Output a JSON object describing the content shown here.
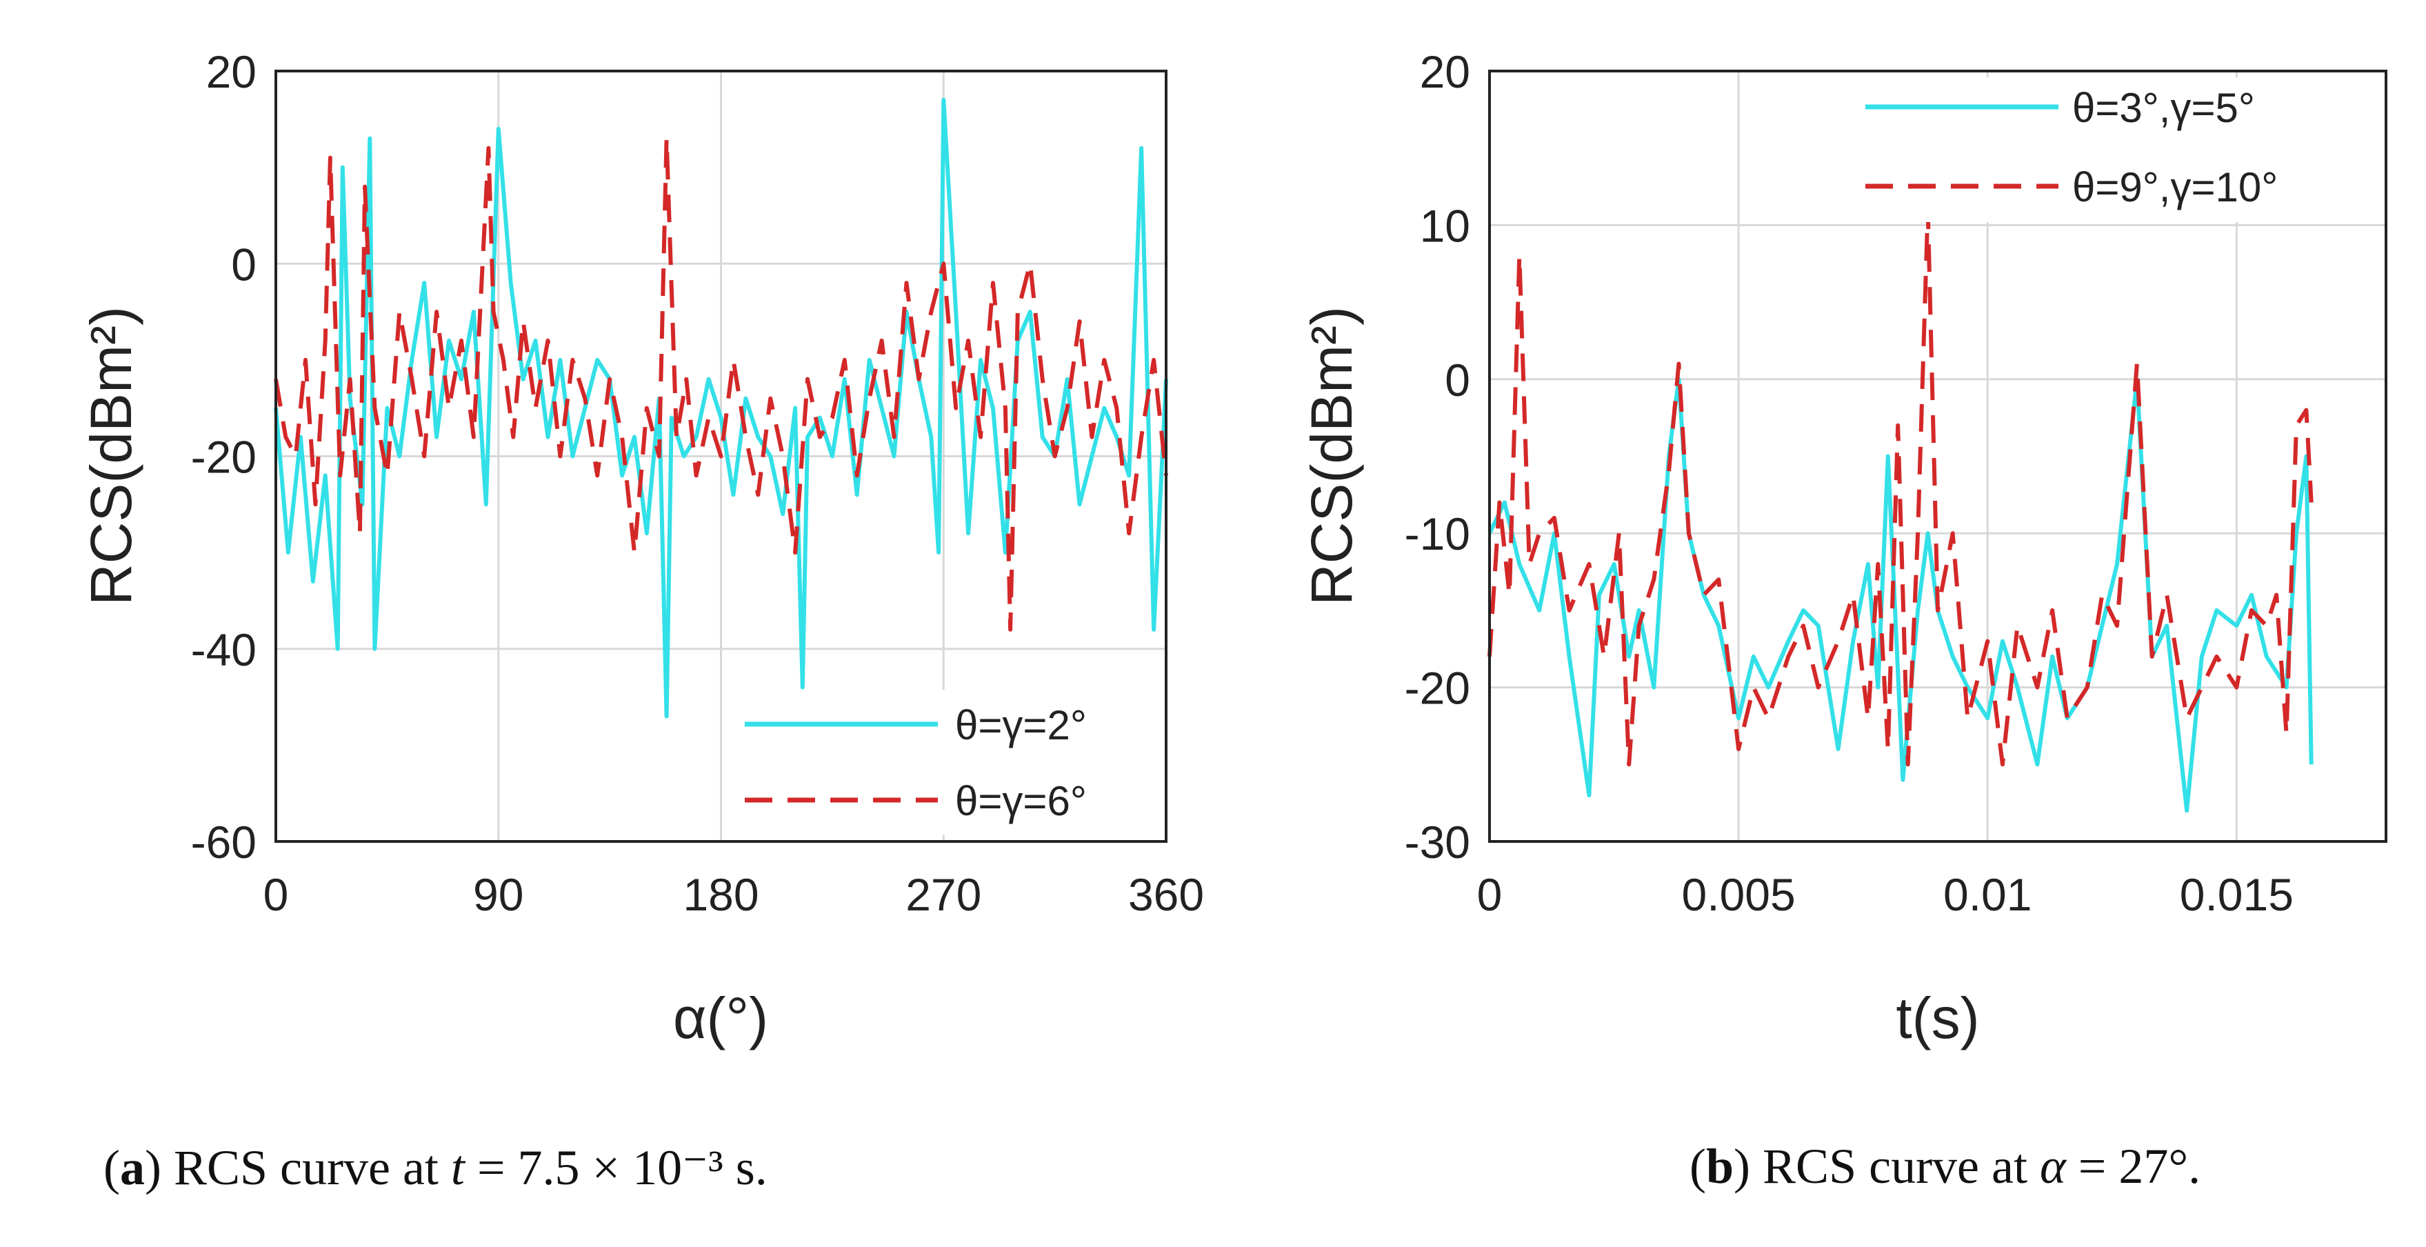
{
  "chart_data": [
    {
      "type": "line",
      "id": "a",
      "xlabel": "α(°)",
      "ylabel": "RCS(dBm²)",
      "xlim": [
        0,
        360
      ],
      "ylim": [
        -60,
        20
      ],
      "xticks": [
        "0",
        "90",
        "180",
        "270",
        "360"
      ],
      "yticks": [
        "20",
        "0",
        "-20",
        "-40",
        "-60"
      ],
      "grid": true,
      "legend_position": "bottom-right",
      "series": [
        {
          "name": "θ=γ=2°",
          "color": "#33e0e8",
          "style": "solid",
          "x": [
            0,
            5,
            10,
            15,
            20,
            25,
            27,
            30,
            35,
            38,
            40,
            45,
            50,
            55,
            60,
            65,
            70,
            75,
            80,
            85,
            90,
            95,
            100,
            105,
            110,
            115,
            120,
            125,
            130,
            135,
            140,
            145,
            150,
            155,
            158,
            160,
            165,
            170,
            175,
            180,
            185,
            190,
            195,
            200,
            205,
            210,
            213,
            215,
            220,
            225,
            230,
            235,
            240,
            245,
            250,
            255,
            260,
            265,
            268,
            270,
            275,
            280,
            285,
            290,
            295,
            300,
            305,
            310,
            315,
            320,
            325,
            330,
            335,
            340,
            345,
            350,
            355,
            360
          ],
          "y": [
            -15,
            -30,
            -18,
            -33,
            -22,
            -40,
            10,
            -14,
            -25,
            13,
            -40,
            -15,
            -20,
            -10,
            -2,
            -18,
            -8,
            -12,
            -5,
            -25,
            14,
            -2,
            -12,
            -8,
            -18,
            -10,
            -20,
            -15,
            -10,
            -12,
            -22,
            -18,
            -28,
            -14,
            -47,
            -16,
            -20,
            -18,
            -12,
            -16,
            -24,
            -14,
            -18,
            -20,
            -26,
            -15,
            -44,
            -18,
            -16,
            -20,
            -12,
            -24,
            -10,
            -15,
            -20,
            -5,
            -12,
            -18,
            -30,
            17,
            -5,
            -28,
            -10,
            -15,
            -30,
            -8,
            -5,
            -18,
            -20,
            -12,
            -25,
            -20,
            -15,
            -18,
            -22,
            12,
            -38,
            -12
          ]
        },
        {
          "name": "θ=γ=6°",
          "color": "#d42828",
          "style": "dashed",
          "x": [
            0,
            4,
            8,
            12,
            16,
            20,
            22,
            26,
            30,
            34,
            36,
            40,
            45,
            50,
            55,
            60,
            65,
            70,
            75,
            80,
            86,
            88,
            92,
            96,
            100,
            105,
            110,
            115,
            120,
            125,
            130,
            135,
            140,
            145,
            150,
            155,
            158,
            162,
            166,
            170,
            175,
            180,
            185,
            190,
            195,
            200,
            205,
            210,
            215,
            220,
            225,
            230,
            235,
            240,
            245,
            250,
            255,
            260,
            265,
            270,
            275,
            280,
            285,
            290,
            295,
            297,
            300,
            305,
            310,
            315,
            320,
            325,
            330,
            335,
            340,
            345,
            350,
            355,
            360
          ],
          "y": [
            -12,
            -18,
            -20,
            -10,
            -25,
            -8,
            11,
            -22,
            -12,
            -28,
            8,
            -15,
            -22,
            -5,
            -12,
            -20,
            -5,
            -15,
            -8,
            -18,
            12,
            -5,
            -10,
            -18,
            -6,
            -15,
            -8,
            -20,
            -10,
            -14,
            -22,
            -12,
            -18,
            -30,
            -15,
            -20,
            13,
            -18,
            -12,
            -22,
            -16,
            -20,
            -10,
            -18,
            -24,
            -14,
            -20,
            -30,
            -12,
            -18,
            -16,
            -10,
            -22,
            -14,
            -8,
            -18,
            -2,
            -12,
            -5,
            0,
            -15,
            -8,
            -18,
            -2,
            -15,
            -38,
            -5,
            0,
            -12,
            -20,
            -15,
            -6,
            -18,
            -10,
            -15,
            -28,
            -18,
            -10,
            -22
          ]
        }
      ]
    },
    {
      "type": "line",
      "id": "b",
      "xlabel": "t(s)",
      "ylabel": "RCS(dBm²)",
      "xlim": [
        0,
        0.018
      ],
      "ylim": [
        -30,
        20
      ],
      "xticks": [
        "0",
        "0.005",
        "0.01",
        "0.015"
      ],
      "xtick_values": [
        0,
        0.005,
        0.01,
        0.015
      ],
      "yticks": [
        "20",
        "10",
        "0",
        "-10",
        "-20",
        "-30"
      ],
      "grid": true,
      "legend_position": "top-right",
      "series": [
        {
          "name": "θ=3°,γ=5°",
          "color": "#33e0e8",
          "style": "solid",
          "x": [
            0,
            0.0003,
            0.0006,
            0.001,
            0.0013,
            0.0016,
            0.002,
            0.0022,
            0.0025,
            0.0028,
            0.003,
            0.0033,
            0.0036,
            0.0038,
            0.004,
            0.0043,
            0.0046,
            0.005,
            0.0053,
            0.0056,
            0.006,
            0.0063,
            0.0066,
            0.007,
            0.0073,
            0.0076,
            0.0078,
            0.008,
            0.0083,
            0.0086,
            0.0088,
            0.009,
            0.0093,
            0.0096,
            0.01,
            0.0103,
            0.0106,
            0.011,
            0.0113,
            0.0116,
            0.012,
            0.0123,
            0.0126,
            0.013,
            0.0133,
            0.0136,
            0.014,
            0.0143,
            0.0146,
            0.015,
            0.0153,
            0.0156,
            0.016,
            0.0162,
            0.0164,
            0.0165
          ],
          "y": [
            -10,
            -8,
            -12,
            -15,
            -10,
            -18,
            -27,
            -14,
            -12,
            -18,
            -15,
            -20,
            -5,
            0,
            -10,
            -14,
            -16,
            -22,
            -18,
            -20,
            -17,
            -15,
            -16,
            -24,
            -17,
            -12,
            -20,
            -5,
            -26,
            -15,
            -10,
            -15,
            -18,
            -20,
            -22,
            -17,
            -20,
            -25,
            -18,
            -22,
            -20,
            -16,
            -12,
            0,
            -18,
            -16,
            -28,
            -18,
            -15,
            -16,
            -14,
            -18,
            -20,
            -10,
            -5,
            -25
          ]
        },
        {
          "name": "θ=9°,γ=10°",
          "color": "#d42828",
          "style": "dashed",
          "x": [
            0,
            0.0002,
            0.0004,
            0.0006,
            0.0008,
            0.001,
            0.0013,
            0.0016,
            0.002,
            0.0023,
            0.0026,
            0.0028,
            0.003,
            0.0033,
            0.0036,
            0.0038,
            0.004,
            0.0043,
            0.0046,
            0.005,
            0.0053,
            0.0056,
            0.006,
            0.0063,
            0.0066,
            0.007,
            0.0073,
            0.0076,
            0.0078,
            0.008,
            0.0082,
            0.0084,
            0.0086,
            0.0088,
            0.009,
            0.0093,
            0.0096,
            0.01,
            0.0103,
            0.0106,
            0.011,
            0.0113,
            0.0116,
            0.012,
            0.0123,
            0.0126,
            0.013,
            0.0133,
            0.0136,
            0.014,
            0.0143,
            0.0146,
            0.015,
            0.0153,
            0.0156,
            0.0158,
            0.016,
            0.0162,
            0.0164,
            0.0165
          ],
          "y": [
            -18,
            -8,
            -14,
            8,
            -12,
            -10,
            -9,
            -15,
            -12,
            -18,
            -10,
            -25,
            -16,
            -13,
            -6,
            1,
            -10,
            -14,
            -13,
            -24,
            -20,
            -22,
            -18,
            -16,
            -20,
            -17,
            -14,
            -22,
            -12,
            -24,
            -3,
            -25,
            -10,
            11,
            -15,
            -10,
            -22,
            -17,
            -25,
            -16,
            -20,
            -15,
            -22,
            -20,
            -14,
            -16,
            1,
            -18,
            -14,
            -22,
            -20,
            -18,
            -20,
            -15,
            -16,
            -14,
            -23,
            -3,
            -2,
            -8
          ]
        }
      ]
    }
  ],
  "captions": {
    "a": {
      "label": "a",
      "text_before": " RCS curve at ",
      "var": "t",
      "text_after": " = 7.5 × 10⁻³ s."
    },
    "b": {
      "label": "b",
      "text_before": " RCS curve at ",
      "var": "α",
      "text_after": " = 27°."
    }
  }
}
